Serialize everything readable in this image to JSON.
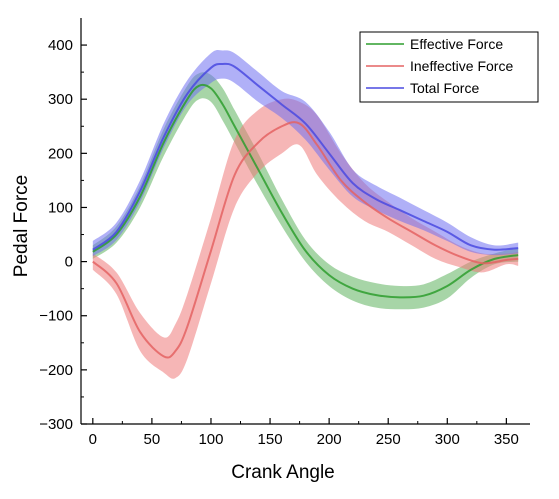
{
  "chart_data": {
    "type": "line",
    "title": "",
    "xlabel": "Crank Angle",
    "ylabel": "Pedal Force",
    "xlim": [
      -10,
      370
    ],
    "ylim": [
      -300,
      450
    ],
    "xticks": [
      0,
      50,
      100,
      150,
      200,
      250,
      300,
      350
    ],
    "yticks": [
      -300,
      -200,
      -100,
      0,
      100,
      200,
      300,
      400
    ],
    "xtick_labels": [
      "0",
      "50",
      "100",
      "150",
      "200",
      "250",
      "300",
      "350"
    ],
    "ytick_labels": [
      "−300",
      "−200",
      "−100",
      "0",
      "100",
      "200",
      "300",
      "400"
    ],
    "grid": false,
    "legend_position": "top-right",
    "series": [
      {
        "name": "Effective Force",
        "color": "#2e9e2e",
        "band_color": "#5fb35f",
        "x": [
          0,
          20,
          40,
          60,
          80,
          90,
          100,
          110,
          120,
          140,
          160,
          180,
          200,
          220,
          240,
          260,
          280,
          300,
          320,
          340,
          360
        ],
        "mean": [
          18,
          50,
          120,
          220,
          300,
          325,
          320,
          290,
          250,
          170,
          90,
          20,
          -25,
          -50,
          -62,
          -66,
          -63,
          -45,
          -15,
          5,
          12
        ],
        "lower": [
          5,
          35,
          100,
          195,
          275,
          300,
          295,
          260,
          220,
          140,
          65,
          0,
          -45,
          -72,
          -85,
          -88,
          -85,
          -68,
          -30,
          -5,
          0
        ],
        "upper": [
          30,
          65,
          140,
          245,
          325,
          348,
          345,
          320,
          280,
          200,
          115,
          40,
          -5,
          -28,
          -40,
          -45,
          -42,
          -23,
          0,
          15,
          25
        ]
      },
      {
        "name": "Ineffective Force",
        "color": "#e46363",
        "band_color": "#ee7a7a",
        "x": [
          0,
          20,
          40,
          60,
          70,
          80,
          100,
          120,
          140,
          160,
          175,
          190,
          210,
          230,
          250,
          270,
          290,
          310,
          330,
          350,
          360
        ],
        "mean": [
          0,
          -40,
          -130,
          -175,
          -165,
          -120,
          20,
          160,
          220,
          250,
          255,
          215,
          150,
          110,
          80,
          55,
          30,
          10,
          -3,
          3,
          5
        ],
        "lower": [
          -15,
          -60,
          -165,
          -205,
          -215,
          -180,
          -40,
          100,
          165,
          200,
          215,
          160,
          110,
          75,
          55,
          30,
          5,
          -10,
          -20,
          -5,
          -8
        ],
        "upper": [
          15,
          -20,
          -95,
          -140,
          -115,
          -60,
          80,
          225,
          280,
          300,
          295,
          270,
          200,
          145,
          110,
          80,
          55,
          30,
          15,
          15,
          18
        ]
      },
      {
        "name": "Total Force",
        "color": "#4a4ae0",
        "band_color": "#7070f0",
        "x": [
          0,
          20,
          40,
          60,
          80,
          100,
          110,
          120,
          140,
          160,
          180,
          200,
          220,
          240,
          260,
          280,
          300,
          320,
          340,
          360
        ],
        "mean": [
          22,
          55,
          130,
          230,
          310,
          358,
          365,
          360,
          325,
          290,
          255,
          200,
          145,
          115,
          95,
          75,
          55,
          30,
          22,
          25
        ],
        "lower": [
          10,
          40,
          110,
          210,
          290,
          330,
          338,
          330,
          295,
          265,
          225,
          170,
          120,
          95,
          75,
          58,
          38,
          18,
          12,
          15
        ],
        "upper": [
          38,
          72,
          150,
          255,
          335,
          385,
          390,
          385,
          350,
          315,
          295,
          240,
          170,
          140,
          118,
          95,
          72,
          45,
          30,
          35
        ]
      }
    ]
  }
}
